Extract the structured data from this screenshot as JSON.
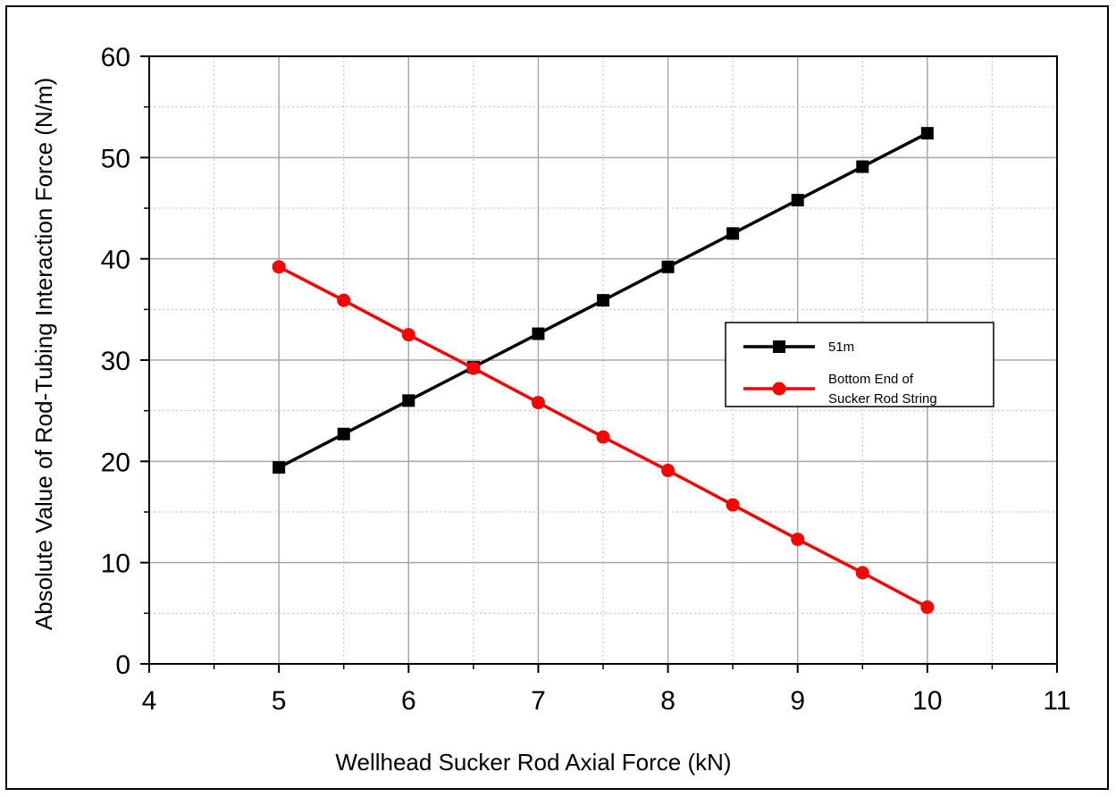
{
  "chart_data": {
    "type": "line",
    "title": "",
    "xlabel": "Wellhead Sucker Rod Axial Force (kN)",
    "ylabel": "Absolute Value of Rod-Tubing Interaction Force (N/m)",
    "xlim": [
      4,
      11
    ],
    "ylim": [
      0,
      60
    ],
    "x_ticks": [
      "4",
      "5",
      "6",
      "7",
      "8",
      "9",
      "10",
      "11"
    ],
    "y_ticks": [
      "0",
      "10",
      "20",
      "30",
      "40",
      "50",
      "60"
    ],
    "grid": true,
    "legend_position": "right",
    "x": [
      5,
      5.5,
      6,
      6.5,
      7,
      7.5,
      8,
      8.5,
      9,
      9.5,
      10
    ],
    "series": [
      {
        "name": "51m",
        "color": "#000000",
        "marker": "square",
        "values": [
          19.4,
          22.7,
          26.0,
          29.3,
          32.6,
          35.9,
          39.2,
          42.5,
          45.8,
          49.1,
          52.4
        ]
      },
      {
        "name_lines": [
          "Bottom End of",
          "Sucker Rod String"
        ],
        "color": "#ff0000",
        "marker": "circle",
        "values": [
          39.2,
          35.9,
          32.5,
          29.2,
          25.8,
          22.4,
          19.1,
          15.7,
          12.3,
          9.0,
          5.6
        ]
      }
    ]
  }
}
